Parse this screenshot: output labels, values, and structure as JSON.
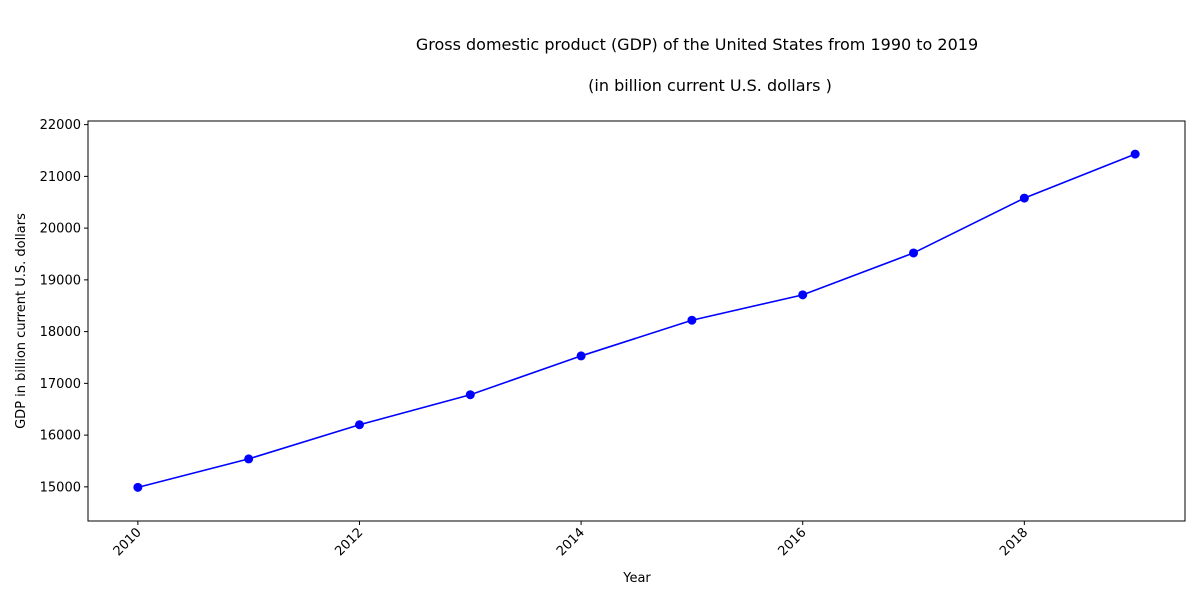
{
  "chart_data": {
    "type": "line",
    "title": "Gross domestic product (GDP) of the United States from 1990 to 2019",
    "subtitle": "(in billion current U.S. dollars )",
    "xlabel": "Year",
    "ylabel": "GDP in billion current U.S. dollars",
    "x": [
      2010,
      2011,
      2012,
      2013,
      2014,
      2015,
      2016,
      2017,
      2018,
      2019
    ],
    "series": [
      {
        "values": [
          14990,
          15540,
          16200,
          16780,
          17530,
          18220,
          18710,
          19520,
          20580,
          21430
        ]
      }
    ],
    "xlim": [
      2009.55,
      2019.45
    ],
    "ylim": [
      14340,
      22070
    ],
    "xticks": [
      2010,
      2012,
      2014,
      2016,
      2018
    ],
    "yticks": [
      15000,
      16000,
      17000,
      18000,
      19000,
      20000,
      21000,
      22000
    ],
    "line_color": "#0000ff",
    "marker": "circle",
    "grid": false,
    "legend": "none"
  }
}
